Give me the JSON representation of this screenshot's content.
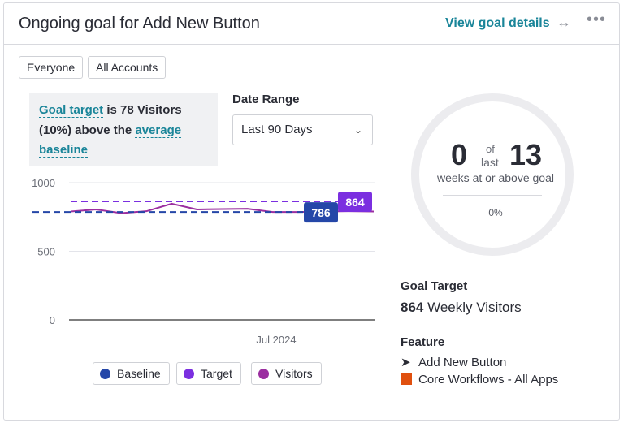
{
  "header": {
    "title": "Ongoing goal for Add New Button",
    "view_details": "View goal details",
    "expand_icon": "↔",
    "more_icon": "•••"
  },
  "filters": [
    "Everyone",
    "All Accounts"
  ],
  "goal_text": {
    "link1": "Goal target",
    "part1": " is 78 Visitors (10%) above the ",
    "link2": "average baseline"
  },
  "date_range": {
    "label": "Date Range",
    "value": "Last 90 Days"
  },
  "chart_data": {
    "type": "line",
    "x_tick_labels": [
      "Jul 2024"
    ],
    "y_ticks": [
      0,
      500,
      1000
    ],
    "ylim": [
      0,
      1000
    ],
    "grid": true,
    "series": [
      {
        "name": "Visitors",
        "color": "#9b2ea0",
        "values": [
          790,
          805,
          778,
          792,
          847,
          805,
          808,
          810,
          786,
          786,
          790,
          792,
          790
        ]
      },
      {
        "name": "Baseline",
        "color": "#2547a8",
        "value": 786,
        "style": "dashed"
      },
      {
        "name": "Target",
        "color": "#7b2fe0",
        "value": 864,
        "style": "dashed"
      }
    ],
    "labels": {
      "baseline": "786",
      "target": "864"
    }
  },
  "legend": [
    {
      "label": "Baseline",
      "color": "#2547a8"
    },
    {
      "label": "Target",
      "color": "#7b2fe0"
    },
    {
      "label": "Visitors",
      "color": "#9b2ea0"
    }
  ],
  "progress": {
    "achieved": "0",
    "of": "of",
    "last": "last",
    "total": "13",
    "caption": "weeks at or above goal",
    "percent": "0%"
  },
  "goal_target": {
    "heading": "Goal Target",
    "value": "864",
    "unit": " Weekly Visitors"
  },
  "feature": {
    "heading": "Feature",
    "name": "Add New Button",
    "app": "Core Workflows - All Apps",
    "app_color": "#e0500f"
  }
}
